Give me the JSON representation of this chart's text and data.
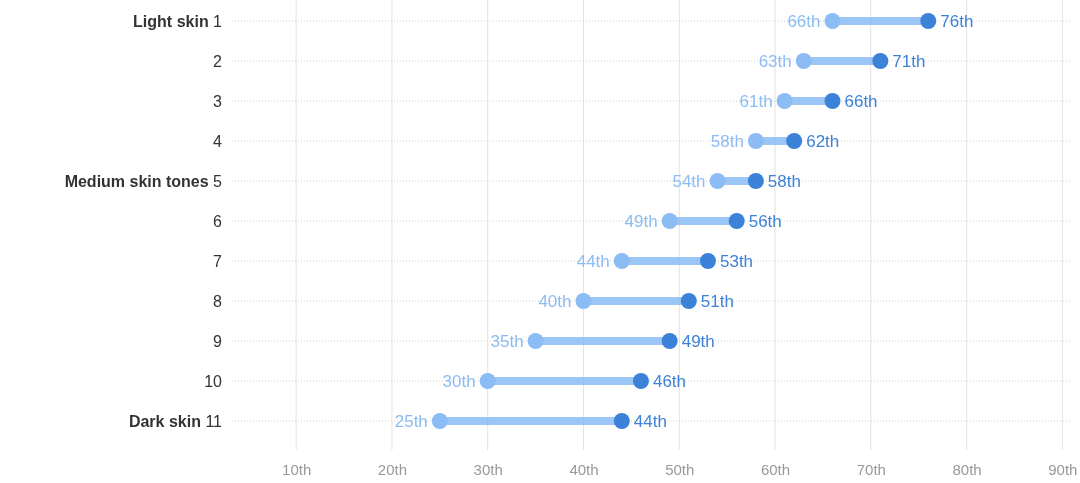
{
  "chart_data": {
    "type": "scatter",
    "orientation": "horizontal",
    "marker": "circle",
    "grid": true,
    "categories": [
      "Light skin 1",
      "2",
      "3",
      "4",
      "Medium skin tones 5",
      "6",
      "7",
      "8",
      "9",
      "10",
      "Dark skin 11"
    ],
    "series": [
      {
        "color": "#8bbcf3",
        "values": [
          66,
          63,
          61,
          58,
          54,
          49,
          44,
          40,
          35,
          30,
          25
        ],
        "value_labels": [
          "66th",
          "63th",
          "61th",
          "58th",
          "54th",
          "49th",
          "44th",
          "40th",
          "35th",
          "30th",
          "25th"
        ]
      },
      {
        "color": "#3d82d9",
        "values": [
          76,
          71,
          66,
          62,
          58,
          56,
          53,
          51,
          49,
          46,
          44
        ],
        "value_labels": [
          "76th",
          "71th",
          "66th",
          "62th",
          "58th",
          "56th",
          "53th",
          "51th",
          "49th",
          "46th",
          "44th"
        ]
      }
    ],
    "xlim": [
      3.3,
      90.8
    ],
    "xticks": [
      {
        "value": 10,
        "label": "10th"
      },
      {
        "value": 20,
        "label": "20th"
      },
      {
        "value": 30,
        "label": "30th"
      },
      {
        "value": 40,
        "label": "40th"
      },
      {
        "value": 50,
        "label": "50th"
      },
      {
        "value": 60,
        "label": "60th"
      },
      {
        "value": 70,
        "label": "70th"
      },
      {
        "value": 80,
        "label": "80th"
      },
      {
        "value": 90,
        "label": "90th"
      }
    ]
  }
}
